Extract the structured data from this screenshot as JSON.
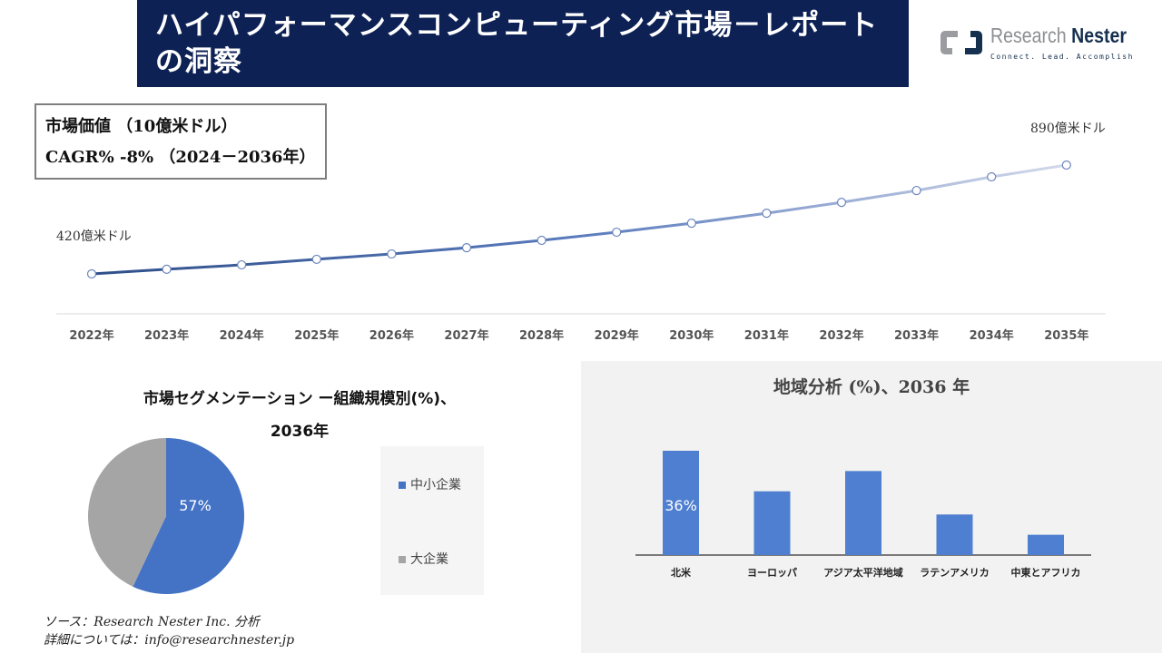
{
  "header": {
    "title": "ハイパフォーマンスコンピューティング市場－レポートの洞察",
    "logo_name_1": "Research",
    "logo_name_2": "Nester",
    "logo_tagline": "Connect. Lead. Accomplish"
  },
  "kpi": {
    "line1": "市場価値 （10億米ドル）",
    "line2": "CAGR% -8% （2024－2036年）"
  },
  "chart_data": [
    {
      "type": "line",
      "title": "市場価値",
      "x": [
        "2022年",
        "2023年",
        "2024年",
        "2025年",
        "2026年",
        "2027年",
        "2028年",
        "2029年",
        "2030年",
        "2031年",
        "2032年",
        "2033年",
        "2034年",
        "2035年"
      ],
      "values": [
        420,
        440,
        459,
        483,
        506,
        533,
        565,
        600,
        639,
        682,
        729,
        780,
        839,
        890
      ],
      "annotations": {
        "start": "420億米ドル",
        "end": "890億米ドル"
      },
      "ylim": [
        300,
        950
      ]
    },
    {
      "type": "pie",
      "title": "市場セグメンテーション ー組織規模別(%)、",
      "subtitle": "2036年",
      "labels": [
        "中小企業",
        "大企業"
      ],
      "values": [
        57,
        43
      ],
      "data_label": "57%",
      "colors": [
        "#4472c4",
        "#a5a5a5"
      ]
    },
    {
      "type": "bar",
      "title": "地域分析 (%)、2036 年",
      "categories": [
        "北米",
        "ヨーロッパ",
        "アジア太平洋地域",
        "ラテンアメリカ",
        "中東とアフリカ"
      ],
      "values": [
        36,
        22,
        29,
        14,
        7
      ],
      "data_label": "36%",
      "color": "#4f7fd0",
      "ylim": [
        0,
        40
      ]
    }
  ],
  "footer": {
    "source": "ソース：Research Nester Inc. 分析",
    "contact": "詳細については：info@researchnester.jp"
  }
}
